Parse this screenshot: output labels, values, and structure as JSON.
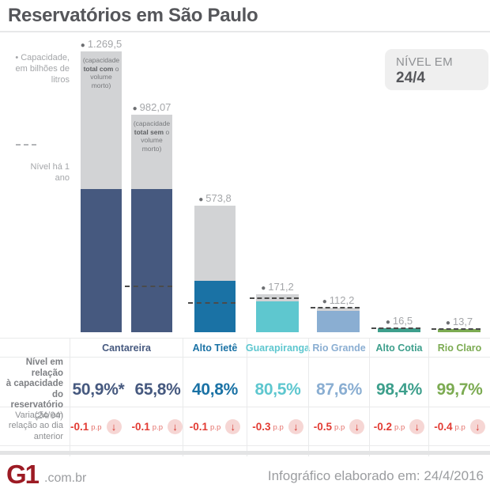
{
  "title": "Reservatórios em São Paulo",
  "badge": {
    "label": "NÍVEL EM",
    "date": "24/4"
  },
  "legends": {
    "capacity": "• Capacidade,\nem bilhões de\nlitros",
    "year_ago": "Nível há 1\nano"
  },
  "palette": {
    "cantareira": "#46597f",
    "alto_tiete": "#1a72a5",
    "guarapiranga": "#5ec7cf",
    "rio_grande": "#8aaed2",
    "alto_cotia": "#3d9f8c",
    "rio_claro": "#7cab52"
  },
  "chart_data": {
    "type": "bar",
    "title": "Reservatórios em São Paulo",
    "ylabel": "Capacidade, em bilhões de litros",
    "legend_note": "Nível há 1 ano (linha tracejada)",
    "categories": [
      "Cantareira",
      "Cantareira",
      "Alto Tietê",
      "Guarapiranga",
      "Rio Grande",
      "Alto Cotia",
      "Rio Claro"
    ],
    "bars": [
      {
        "category": "Cantareira",
        "capacity": 1269.5,
        "capacity_label": "1.269,5",
        "fill_pct": 50.9,
        "color_key": "cantareira",
        "note_prefix": "(capacidade",
        "note_bold": "total com",
        "note_mid": "o",
        "note_suffix": "volume\nmorto)",
        "year_ago_pct": null
      },
      {
        "category": "Cantareira",
        "capacity": 982.07,
        "capacity_label": "982,07",
        "fill_pct": 65.8,
        "color_key": "cantareira",
        "note_prefix": "(capacidade",
        "note_bold": "total sem",
        "note_mid": "o",
        "note_suffix": "volume\nmorto)",
        "year_ago_pct": 21
      },
      {
        "category": "Alto Tietê",
        "capacity": 573.8,
        "capacity_label": "573,8",
        "fill_pct": 40.8,
        "color_key": "alto_tiete",
        "year_ago_pct": 23
      },
      {
        "category": "Guarapiranga",
        "capacity": 171.2,
        "capacity_label": "171,2",
        "fill_pct": 80.5,
        "color_key": "guarapiranga",
        "year_ago_pct": 89
      },
      {
        "category": "Rio Grande",
        "capacity": 112.2,
        "capacity_label": "112,2",
        "fill_pct": 87.6,
        "color_key": "rio_grande",
        "year_ago_pct": 99
      },
      {
        "category": "Alto Cotia",
        "capacity": 16.5,
        "capacity_label": "16,5",
        "fill_pct": 98.4,
        "color_key": "alto_cotia",
        "year_ago_pct": 100
      },
      {
        "category": "Rio Claro",
        "capacity": 13.7,
        "capacity_label": "13,7",
        "fill_pct": 99.7,
        "color_key": "rio_claro",
        "year_ago_pct": 100
      }
    ]
  },
  "table": {
    "categories": [
      "Cantareira",
      "Alto Tietê",
      "Guarapiranga",
      "Rio Grande",
      "Alto Cotia",
      "Rio Claro"
    ],
    "level": {
      "label": "Nível em relação\nà capacidade do\nreservatório",
      "sublabel": "(24/04)",
      "values": [
        "50,9%*",
        "65,8%",
        "40,8%",
        "80,5%",
        "87,6%",
        "98,4%",
        "99,7%"
      ]
    },
    "variation": {
      "label": "Variação em\nrelação ao dia\nanterior",
      "unit": "p.p",
      "values": [
        "-0.1",
        "-0.1",
        "-0.1",
        "-0.3",
        "-0.5",
        "-0.2",
        "-0.4"
      ],
      "direction": "down"
    }
  },
  "footer": {
    "logo": "G1",
    "logo_suffix": ".com.br",
    "credit": "Infográfico elaborado em: 24/4/2016"
  }
}
